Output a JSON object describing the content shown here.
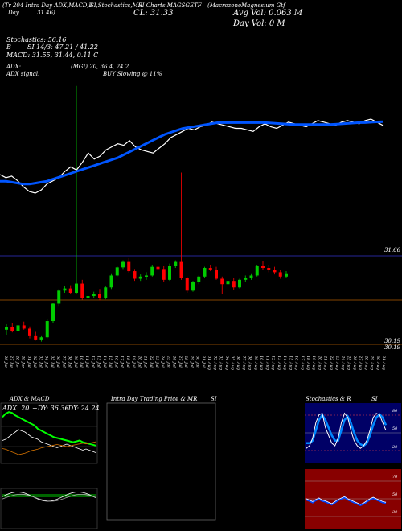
{
  "header": {
    "line1_a": "(Tr 204 Intra Day ADX,MACD,B",
    "line1_b": "SI,Stochastics,MR",
    "line1_c": "SI Charts MAGSGETF",
    "line1_d": "(Macrozone",
    "line1_e": "Magnesium Gtf",
    "line2_a": "Day",
    "line2_b": "31.46)",
    "close_label": "CL: 31.33",
    "avg_vol": "Avg Vol: 0.063 M",
    "day_vol": "Day Vol: 0   M",
    "stoch_title": "Stochastics: 56.16",
    "stoch_b": "B",
    "rsi_line": "SI 14/3: 47.21 / 41.22",
    "macd_line": "MACD: 31.55, 31.44, 0.11 C",
    "adx_line": "ADX:",
    "adx_vals": "(MGI) 20, 36.4, 24.2",
    "adx_signal": "ADX  signal:",
    "buy_signal": "BUY Slowing @ 11%"
  },
  "price_labels": [
    "31.66",
    "30.19",
    "30.19"
  ],
  "x_dates": [
    "26 Jun",
    "27 Jun",
    "28 Jun",
    "29 Jun",
    "01 Jul",
    "02 Jul",
    "03 Jul",
    "04 Jul",
    "05 Jul",
    "06 Jul",
    "07 Jul",
    "08 Jul",
    "09 Jul",
    "10 Jul",
    "11 Jul",
    "12 Jul",
    "13 Jul",
    "14 Jul",
    "15 Jul",
    "16 Jul",
    "17 Jul",
    "18 Jul",
    "19 Jul",
    "20 Jul",
    "21 Jul",
    "22 Jul",
    "23 Jul",
    "24 Jul",
    "25 Jul",
    "26 Jul",
    "27 Jul",
    "28 Jul",
    "29 Jul",
    "30 Jul",
    "31 Jul",
    "01 Aug",
    "02 Aug",
    "03 Aug",
    "04 Aug",
    "05 Aug",
    "06 Aug",
    "07 Aug",
    "08 Aug",
    "09 Aug",
    "10 Aug",
    "11 Aug",
    "12 Aug",
    "13 Aug",
    "14 Aug",
    "15 Aug",
    "16 Aug",
    "17 Aug",
    "18 Aug",
    "19 Aug",
    "20 Aug",
    "21 Aug",
    "22 Aug",
    "23 Aug",
    "24 Aug",
    "25 Aug",
    "26 Aug",
    "27 Aug",
    "28 Aug",
    "29 Aug",
    "30 Aug",
    "31 Aug"
  ],
  "panels": {
    "adx_title": "ADX  & MACD",
    "adx_legend_adx": "ADX: 20",
    "adx_legend_pdi": "+DY: 36.36",
    "adx_legend_mdi": "-DY: 24.24",
    "intra_title": "Intra  Day Trading Price  & MR",
    "intra_title_b": "SI",
    "stoch_title": "Stochastics & R",
    "stoch_title_b": "SI",
    "stoch_axis": [
      "80",
      "50",
      "20"
    ],
    "rsi_axis": [
      "70",
      "50",
      "30"
    ]
  },
  "colors": {
    "up": "#00cc00",
    "down": "#ff0000",
    "ma": "#0055ff",
    "price_line": "#ffffff",
    "grid_orange": "#b05a00",
    "grid_blue": "#3333cc",
    "stoch_bg": "#000066",
    "rsi_bg": "#880000"
  },
  "chart_data": {
    "type": "candlestick",
    "candles": [
      {
        "o": 30.3,
        "h": 30.4,
        "l": 30.2,
        "c": 30.35
      },
      {
        "o": 30.35,
        "h": 30.42,
        "l": 30.25,
        "c": 30.28
      },
      {
        "o": 30.28,
        "h": 30.4,
        "l": 30.26,
        "c": 30.38
      },
      {
        "o": 30.38,
        "h": 30.45,
        "l": 30.3,
        "c": 30.32
      },
      {
        "o": 30.32,
        "h": 30.36,
        "l": 30.14,
        "c": 30.18
      },
      {
        "o": 30.18,
        "h": 30.26,
        "l": 30.1,
        "c": 30.12
      },
      {
        "o": 30.12,
        "h": 30.18,
        "l": 30.08,
        "c": 30.16
      },
      {
        "o": 30.16,
        "h": 30.5,
        "l": 30.14,
        "c": 30.46
      },
      {
        "o": 30.46,
        "h": 30.8,
        "l": 30.42,
        "c": 30.78
      },
      {
        "o": 30.78,
        "h": 31.05,
        "l": 30.74,
        "c": 31.02
      },
      {
        "o": 31.02,
        "h": 31.1,
        "l": 30.98,
        "c": 31.06
      },
      {
        "o": 31.06,
        "h": 31.12,
        "l": 30.95,
        "c": 30.98
      },
      {
        "o": 30.98,
        "h": 34.8,
        "l": 30.96,
        "c": 31.15
      },
      {
        "o": 31.15,
        "h": 31.22,
        "l": 30.85,
        "c": 30.88
      },
      {
        "o": 30.88,
        "h": 30.95,
        "l": 30.82,
        "c": 30.92
      },
      {
        "o": 30.92,
        "h": 31.0,
        "l": 30.88,
        "c": 30.96
      },
      {
        "o": 30.96,
        "h": 31.05,
        "l": 30.84,
        "c": 30.88
      },
      {
        "o": 30.88,
        "h": 31.1,
        "l": 30.86,
        "c": 31.08
      },
      {
        "o": 31.08,
        "h": 31.34,
        "l": 31.05,
        "c": 31.3
      },
      {
        "o": 31.3,
        "h": 31.48,
        "l": 31.28,
        "c": 31.45
      },
      {
        "o": 31.45,
        "h": 31.58,
        "l": 31.42,
        "c": 31.55
      },
      {
        "o": 31.55,
        "h": 31.62,
        "l": 31.35,
        "c": 31.38
      },
      {
        "o": 31.38,
        "h": 31.42,
        "l": 31.2,
        "c": 31.24
      },
      {
        "o": 31.24,
        "h": 31.32,
        "l": 31.2,
        "c": 31.28
      },
      {
        "o": 31.28,
        "h": 31.36,
        "l": 31.22,
        "c": 31.3
      },
      {
        "o": 31.3,
        "h": 31.5,
        "l": 31.28,
        "c": 31.46
      },
      {
        "o": 31.46,
        "h": 31.52,
        "l": 31.4,
        "c": 31.42
      },
      {
        "o": 31.42,
        "h": 31.48,
        "l": 31.18,
        "c": 31.22
      },
      {
        "o": 31.22,
        "h": 31.52,
        "l": 31.2,
        "c": 31.48
      },
      {
        "o": 31.48,
        "h": 31.58,
        "l": 31.44,
        "c": 31.55
      },
      {
        "o": 31.55,
        "h": 33.2,
        "l": 31.22,
        "c": 31.25
      },
      {
        "o": 31.25,
        "h": 31.28,
        "l": 30.98,
        "c": 31.02
      },
      {
        "o": 31.02,
        "h": 31.2,
        "l": 31.0,
        "c": 31.18
      },
      {
        "o": 31.18,
        "h": 31.3,
        "l": 31.14,
        "c": 31.28
      },
      {
        "o": 31.28,
        "h": 31.46,
        "l": 31.26,
        "c": 31.44
      },
      {
        "o": 31.44,
        "h": 31.5,
        "l": 31.38,
        "c": 31.4
      },
      {
        "o": 31.4,
        "h": 31.46,
        "l": 31.22,
        "c": 31.24
      },
      {
        "o": 31.24,
        "h": 31.28,
        "l": 30.95,
        "c": 31.14
      },
      {
        "o": 31.14,
        "h": 31.22,
        "l": 31.1,
        "c": 31.2
      },
      {
        "o": 31.2,
        "h": 31.26,
        "l": 31.04,
        "c": 31.08
      },
      {
        "o": 31.08,
        "h": 31.24,
        "l": 31.06,
        "c": 31.22
      },
      {
        "o": 31.22,
        "h": 31.3,
        "l": 31.18,
        "c": 31.26
      },
      {
        "o": 31.26,
        "h": 31.34,
        "l": 31.22,
        "c": 31.3
      },
      {
        "o": 31.3,
        "h": 31.5,
        "l": 31.28,
        "c": 31.48
      },
      {
        "o": 31.48,
        "h": 31.56,
        "l": 31.4,
        "c": 31.44
      },
      {
        "o": 31.44,
        "h": 31.5,
        "l": 31.36,
        "c": 31.4
      },
      {
        "o": 31.4,
        "h": 31.46,
        "l": 31.32,
        "c": 31.36
      },
      {
        "o": 31.36,
        "h": 31.4,
        "l": 31.24,
        "c": 31.28
      },
      {
        "o": 31.28,
        "h": 31.38,
        "l": 31.26,
        "c": 31.34
      }
    ],
    "price_line": [
      62,
      60,
      61,
      58,
      54,
      51,
      50,
      52,
      56,
      58,
      60,
      64,
      67,
      65,
      70,
      76,
      72,
      74,
      78,
      80,
      82,
      81,
      84,
      80,
      78,
      77,
      76,
      79,
      82,
      86,
      88,
      90,
      92,
      91,
      93,
      94,
      96,
      95,
      94,
      93,
      92,
      92,
      91,
      90,
      93,
      95,
      93,
      92,
      94,
      96,
      95,
      94,
      93,
      95,
      97,
      96,
      95,
      94,
      96,
      97,
      96,
      95,
      97,
      98,
      96,
      94
    ],
    "ma_line": [
      60,
      60,
      59.5,
      59,
      58.5,
      58.5,
      59,
      59.5,
      60,
      61,
      62,
      63,
      64,
      65,
      66,
      67,
      68,
      69,
      70,
      71,
      72,
      73.5,
      75,
      76.5,
      78,
      79.5,
      81,
      82.5,
      84,
      85,
      86,
      87,
      87.5,
      88,
      88.5,
      89,
      89.5,
      90,
      90,
      90,
      90,
      90,
      90,
      90,
      90,
      90,
      89.8,
      89.6,
      89.4,
      89.2,
      89,
      89,
      89,
      89,
      89,
      89,
      89,
      89.2,
      89.4,
      89.6,
      89.8,
      90,
      90,
      90.2,
      90.4,
      90.5
    ],
    "adx_price": [
      55,
      56,
      58,
      60,
      62,
      64,
      63,
      62,
      60,
      58,
      57,
      56,
      54,
      53,
      52,
      51,
      50,
      49,
      50,
      51,
      52,
      51,
      50,
      49,
      48,
      47,
      48,
      47,
      46,
      45
    ],
    "adx_green": [
      80,
      84,
      86,
      85,
      82,
      80,
      78,
      76,
      74,
      72,
      70,
      66,
      64,
      62,
      60,
      58,
      56,
      55,
      54,
      53,
      52,
      51,
      50,
      51,
      52,
      50,
      49,
      48,
      47,
      46
    ],
    "stoch_k": [
      20,
      25,
      40,
      70,
      85,
      88,
      60,
      45,
      30,
      25,
      40,
      70,
      88,
      80,
      55,
      35,
      25,
      20,
      25,
      35,
      55,
      80,
      88,
      85,
      70,
      55
    ],
    "stoch_d": [
      30,
      30,
      35,
      55,
      75,
      85,
      75,
      60,
      45,
      35,
      35,
      55,
      75,
      82,
      70,
      50,
      35,
      28,
      25,
      30,
      45,
      65,
      80,
      86,
      80,
      65
    ],
    "rsi": [
      52,
      50,
      48,
      51,
      53,
      50,
      49,
      47,
      45,
      48,
      51,
      53,
      55,
      52,
      50,
      48,
      46,
      44,
      46,
      49,
      52,
      54,
      52,
      50,
      48,
      47
    ],
    "ylim": [
      30.0,
      34.9
    ]
  }
}
